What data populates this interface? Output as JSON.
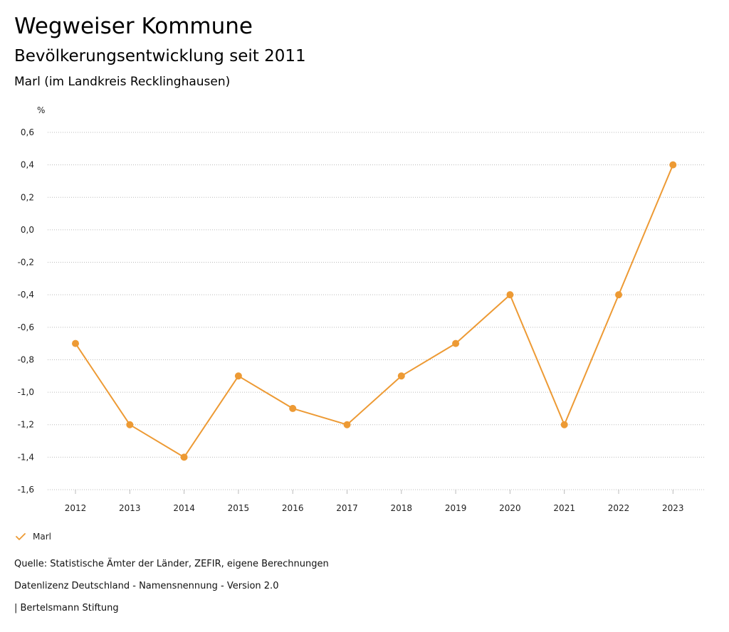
{
  "header": {
    "title": "Wegweiser Kommune",
    "subtitle": "Bevölkerungsentwicklung seit 2011",
    "region": "Marl (im Landkreis Recklinghausen)"
  },
  "footer": {
    "source": "Quelle: Statistische Ämter der Länder, ZEFIR, eigene Berechnungen",
    "license": "Datenlizenz Deutschland - Namensnennung - Version 2.0",
    "publisher": "| Bertelsmann Stiftung"
  },
  "legend": {
    "label": "Marl",
    "icon": "checkmark-icon"
  },
  "colors": {
    "series": "#ED9A34",
    "grid": "#BBBBBB"
  },
  "chart_data": {
    "type": "line",
    "title": "Bevölkerungsentwicklung seit 2011",
    "xlabel": "",
    "ylabel": "%",
    "ylim": [
      -1.6,
      0.6
    ],
    "yticks": [
      "0,6",
      "0,4",
      "0,2",
      "0,0",
      "-0,2",
      "-0,4",
      "-0,6",
      "-0,8",
      "-1,0",
      "-1,2",
      "-1,4",
      "-1,6"
    ],
    "ytick_values": [
      0.6,
      0.4,
      0.2,
      0.0,
      -0.2,
      -0.4,
      -0.6,
      -0.8,
      -1.0,
      -1.2,
      -1.4,
      -1.6
    ],
    "categories": [
      "2012",
      "2013",
      "2014",
      "2015",
      "2016",
      "2017",
      "2018",
      "2019",
      "2020",
      "2021",
      "2022",
      "2023"
    ],
    "series": [
      {
        "name": "Marl",
        "values": [
          -0.7,
          -1.2,
          -1.4,
          -0.9,
          -1.1,
          -1.2,
          -0.9,
          -0.7,
          -0.4,
          -1.2,
          -0.4,
          0.4
        ]
      }
    ],
    "grid": true,
    "legend_position": "bottom-left"
  }
}
